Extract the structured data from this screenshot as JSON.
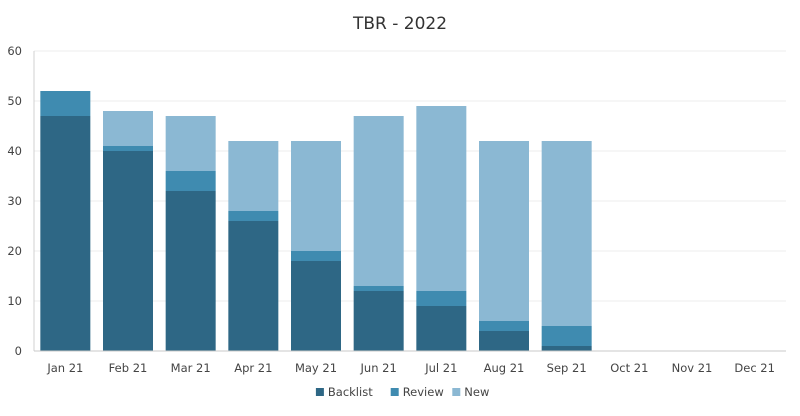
{
  "chart_data": {
    "type": "bar",
    "stacked": true,
    "title": "TBR - 2022",
    "categories": [
      "Jan 21",
      "Feb 21",
      "Mar 21",
      "Apr 21",
      "May 21",
      "Jun 21",
      "Jul 21",
      "Aug 21",
      "Sep 21",
      "Oct 21",
      "Nov 21",
      "Dec 21"
    ],
    "series": [
      {
        "name": "Backlist",
        "color": "#2e6785",
        "values": [
          47,
          40,
          32,
          26,
          18,
          12,
          9,
          4,
          1,
          0,
          0,
          0
        ]
      },
      {
        "name": "Review",
        "color": "#3f8bb0",
        "values": [
          5,
          1,
          4,
          2,
          2,
          1,
          3,
          2,
          4,
          0,
          0,
          0
        ]
      },
      {
        "name": "New",
        "color": "#8bb8d3",
        "values": [
          0,
          7,
          11,
          14,
          22,
          34,
          37,
          36,
          37,
          0,
          0,
          0
        ]
      }
    ],
    "ylim": [
      0,
      60
    ],
    "yticks": [
      0,
      10,
      20,
      30,
      40,
      50,
      60
    ],
    "grid": true,
    "legend_position": "bottom"
  }
}
